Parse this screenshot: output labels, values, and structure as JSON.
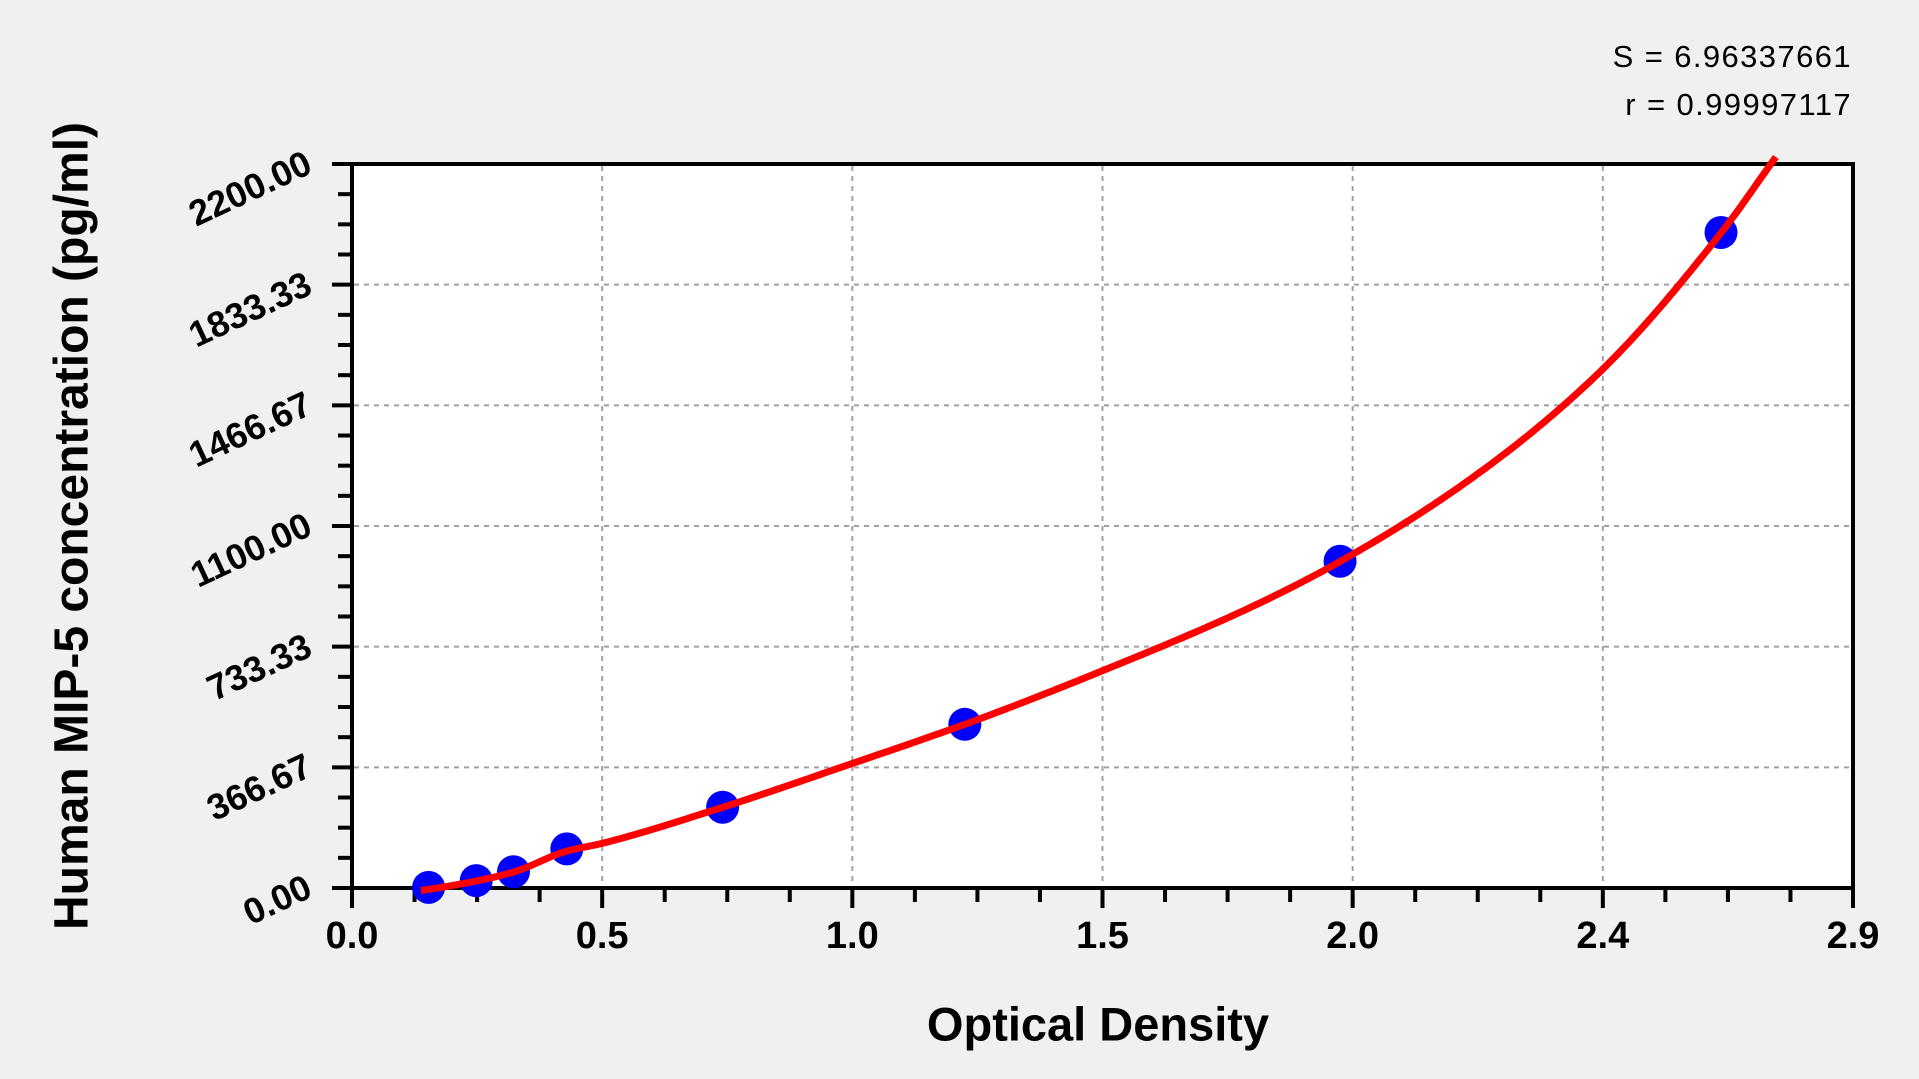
{
  "chart_data": {
    "type": "scatter",
    "title": "",
    "xlabel": "Optical Density",
    "ylabel": "Human MIP-5 concentration (pg/ml)",
    "stats_lines": [
      "S = 6.96337661",
      "r = 0.99997117"
    ],
    "S": 6.96337661,
    "r": 0.99997117,
    "xlim": [
      0,
      2.9
    ],
    "ylim": [
      0,
      2200
    ],
    "x_tick_labels": [
      "0.0",
      "0.5",
      "1.0",
      "1.5",
      "2.0",
      "2.4",
      "2.9"
    ],
    "y_tick_labels": [
      "0.00",
      "366.67",
      "733.33",
      "1100.00",
      "1466.67",
      "1833.33",
      "2200.00"
    ],
    "minor_ticks_per_major_interval": 3,
    "grid": "dashed gray lines at major ticks",
    "legend": "none",
    "series": [
      {
        "name": "standard points",
        "type": "scatter",
        "marker": "filled circle",
        "color": "#0000ff",
        "x_optical_density": [
          0.148,
          0.24,
          0.312,
          0.415,
          0.716,
          1.184,
          1.909,
          2.645
        ],
        "y_concentration_pg_ml": [
          2,
          22.5,
          49.5,
          118.8,
          245.5,
          497.4,
          993,
          1992
        ]
      },
      {
        "name": "fitted standard curve",
        "type": "line",
        "color": "#ff0000",
        "curve_points_od_conc": [
          [
            0.133,
            -7.6
          ],
          [
            0.149,
            -4.0
          ],
          [
            0.24,
            21.3
          ],
          [
            0.312,
            48.6
          ],
          [
            0.415,
            112.1
          ],
          [
            0.482,
            135.2
          ],
          [
            0.716,
            245.2
          ],
          [
            0.963,
            376.5
          ],
          [
            1.184,
            497.4
          ],
          [
            1.446,
            657.6
          ],
          [
            1.735,
            852.0
          ],
          [
            1.909,
            992.1
          ],
          [
            2.17,
            1252.8
          ],
          [
            2.41,
            1566.7
          ],
          [
            2.645,
            1990.6
          ],
          [
            2.751,
            2221.3
          ]
        ]
      }
    ],
    "colors": {
      "background": "#f0f0f0",
      "plot_background": "#ffffff",
      "axis": "#000000",
      "grid": "#a0a0a0",
      "marker": "#0000ff",
      "curve": "#ff0000",
      "text": "#000000"
    }
  }
}
